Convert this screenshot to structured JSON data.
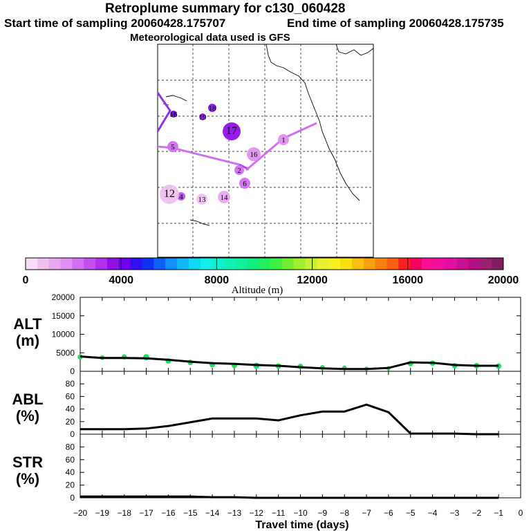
{
  "header": {
    "title": "Retroplume summary for c130_060428",
    "start_label": "Start time of sampling 20060428.175707",
    "end_label": "End time of sampling 20060428.175735",
    "met_label": "Meteorological data used is GFS"
  },
  "colorbar": {
    "axis_label": "Altitude (m)",
    "tick_labels": [
      "0",
      "4000",
      "8000",
      "12000",
      "16000",
      "20000"
    ],
    "range": [
      0,
      20000
    ],
    "colors": [
      "#f8dcf8",
      "#f0c0f0",
      "#e8a8f0",
      "#e090f0",
      "#d070f0",
      "#c050f0",
      "#b030f0",
      "#9010e8",
      "#7000e8",
      "#3010f0",
      "#1030f8",
      "#1060f8",
      "#1090f8",
      "#10b8f8",
      "#10d8f0",
      "#10f0e8",
      "#10f0d0",
      "#10f0b8",
      "#10f0a0",
      "#10f080",
      "#20f060",
      "#40f040",
      "#70f030",
      "#a0f030",
      "#c8f030",
      "#e8f030",
      "#f8f020",
      "#f8e010",
      "#f8c010",
      "#f8a010",
      "#f88010",
      "#f86010",
      "#f82020",
      "#f80060",
      "#f81090",
      "#f010a0",
      "#e010a0",
      "#c81090",
      "#b01080",
      "#982070",
      "#802060"
    ]
  },
  "map": {
    "trajectory_color": "#d070f0",
    "plume_labels": [
      {
        "label": "1",
        "color": "#e090f0"
      },
      {
        "label": "2",
        "color": "#d070f0"
      },
      {
        "label": "4",
        "color": "#c050f0"
      },
      {
        "label": "5",
        "color": "#d070f0"
      },
      {
        "label": "6",
        "color": "#d070f0"
      },
      {
        "label": "12",
        "color": "#f0c0f0"
      },
      {
        "label": "13",
        "color": "#f0c0f0"
      },
      {
        "label": "14",
        "color": "#e8a8f0"
      },
      {
        "label": "16",
        "color": "#e090f0"
      },
      {
        "label": "16",
        "color": "#7000e8"
      },
      {
        "label": "17",
        "color": "#9010e8"
      },
      {
        "label": "18",
        "color": "#9010e8"
      },
      {
        "label": "19",
        "color": "#9010e8"
      }
    ]
  },
  "chart_data": [
    {
      "type": "line",
      "title": "ALT",
      "ylabel": "ALT (m)",
      "ylabel_line1": "ALT",
      "ylabel_line2": "(m)",
      "ylim": [
        0,
        20000
      ],
      "yticks": [
        0,
        5000,
        10000,
        15000,
        20000
      ],
      "x": [
        -20,
        -19,
        -18,
        -17,
        -16,
        -15,
        -14,
        -13,
        -12,
        -11,
        -10,
        -9,
        -8,
        -7,
        -6,
        -5,
        -4,
        -3,
        -2,
        -1
      ],
      "series": [
        {
          "name": "median altitude",
          "values": [
            4000,
            3600,
            3600,
            3500,
            3100,
            2600,
            2200,
            2000,
            1700,
            1500,
            1100,
            800,
            600,
            600,
            900,
            2400,
            2300,
            1700,
            1500,
            1500
          ]
        }
      ],
      "scatter": [
        {
          "x": -20,
          "y": 3900,
          "r": 3.8
        },
        {
          "x": -19,
          "y": 3700,
          "r": 3.4
        },
        {
          "x": -18,
          "y": 3900,
          "r": 3.8
        },
        {
          "x": -17,
          "y": 3800,
          "r": 4.5
        },
        {
          "x": -16,
          "y": 2800,
          "r": 4
        },
        {
          "x": -15,
          "y": 2400,
          "r": 4
        },
        {
          "x": -14,
          "y": 1800,
          "r": 4
        },
        {
          "x": -13,
          "y": 1600,
          "r": 4
        },
        {
          "x": -12,
          "y": 1500,
          "r": 4.5
        },
        {
          "x": -11,
          "y": 1400,
          "r": 4
        },
        {
          "x": -10,
          "y": 1300,
          "r": 4
        },
        {
          "x": -9,
          "y": 1000,
          "r": 3.6
        },
        {
          "x": -8,
          "y": 900,
          "r": 3.4
        },
        {
          "x": -7,
          "y": 700,
          "r": 3
        },
        {
          "x": -6,
          "y": 800,
          "r": 3
        },
        {
          "x": -5,
          "y": 2100,
          "r": 4
        },
        {
          "x": -4,
          "y": 2200,
          "r": 4
        },
        {
          "x": -3,
          "y": 1500,
          "r": 4
        },
        {
          "x": -2,
          "y": 1500,
          "r": 4
        },
        {
          "x": -1,
          "y": 1400,
          "r": 4
        }
      ],
      "scatter_color": "#20e060"
    },
    {
      "type": "line",
      "title": "ABL",
      "ylabel": "ABL (%)",
      "ylabel_line1": "ABL",
      "ylabel_line2": "(%)",
      "ylim": [
        0,
        100
      ],
      "yticks": [
        0,
        20,
        40,
        60,
        80
      ],
      "x": [
        -20,
        -19,
        -18,
        -17,
        -16,
        -15,
        -14,
        -13,
        -12,
        -11,
        -10,
        -9,
        -8,
        -7,
        -6,
        -5,
        -4,
        -3,
        -2,
        -1
      ],
      "series": [
        {
          "name": "ABL fraction",
          "values": [
            8,
            8,
            8,
            9,
            13,
            19,
            25,
            25,
            25,
            22,
            30,
            36,
            36,
            47,
            35,
            1,
            1,
            1,
            0,
            0
          ]
        }
      ]
    },
    {
      "type": "line",
      "title": "STR",
      "ylabel": "STR (%)",
      "ylabel_line1": "STR",
      "ylabel_line2": "(%)",
      "ylim": [
        0,
        100
      ],
      "yticks": [
        0,
        20,
        40,
        60,
        80
      ],
      "x": [
        -20,
        -19,
        -18,
        -17,
        -16,
        -15,
        -14,
        -13,
        -12,
        -11,
        -10,
        -9,
        -8,
        -7,
        -6,
        -5,
        -4,
        -3,
        -2,
        -1
      ],
      "series": [
        {
          "name": "stratospheric fraction",
          "values": [
            2,
            2,
            2,
            2,
            2,
            2,
            1,
            1,
            0,
            0,
            0,
            0,
            0,
            0,
            0,
            0,
            0,
            0,
            0,
            0
          ]
        }
      ],
      "xlabel": "Travel time (days)",
      "xticks": [
        -20,
        -19,
        -18,
        -17,
        -16,
        -15,
        -14,
        -13,
        -12,
        -11,
        -10,
        -9,
        -8,
        -7,
        -6,
        -5,
        -4,
        -3,
        -2,
        -1,
        0
      ],
      "xlim": [
        -20,
        0
      ]
    }
  ]
}
